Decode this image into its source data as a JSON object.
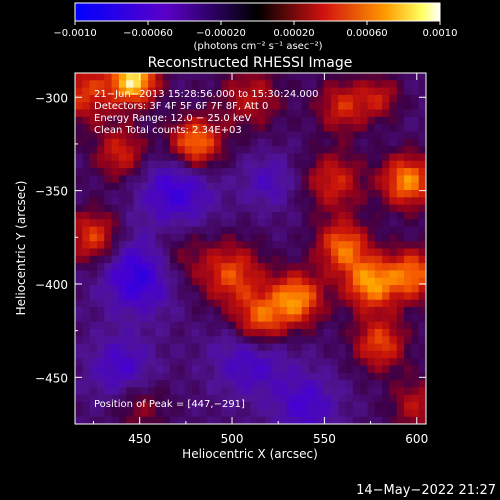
{
  "colorbar": {
    "ticks": [
      "-0.0010",
      "-0.00060",
      "-0.00020",
      "0.00020",
      "0.00060",
      "0.0010"
    ],
    "units": "(photons cm⁻² s⁻¹ asec⁻²)",
    "range": [
      -0.001,
      0.001
    ]
  },
  "footer": {
    "date": "14−May−2022 21:27"
  },
  "chart_data": {
    "type": "heatmap",
    "title": "Reconstructed RHESSI Image",
    "xlabel": "Heliocentric X (arcsec)",
    "ylabel": "Heliocentric Y (arcsec)",
    "xlim": [
      415,
      605
    ],
    "ylim": [
      -475,
      -287
    ],
    "xticks": [
      450,
      500,
      550,
      600
    ],
    "yticks": [
      -300,
      -350,
      -400,
      -450
    ],
    "xtick_labels": [
      "450",
      "500",
      "550",
      "600"
    ],
    "ytick_labels": [
      "−300",
      "−350",
      "−400",
      "−450"
    ],
    "colormap": "blue-purple-red-yellow-white",
    "annotations": [
      "21−Jun−2013 15:28:56.000 to 15:30:24.000",
      "Detectors: 3F 4F 5F 6F 7F 8F, Att 0",
      "Energy Range: 12.0 − 25.0 keV",
      "Clean     Total counts: 2.34E+03"
    ],
    "peak_label": "Position of Peak = [447,−291]",
    "peak": [
      447,
      -291
    ],
    "hotspots": [
      {
        "x": 420,
        "y": -297,
        "s": 12,
        "a": 0.00055
      },
      {
        "x": 447,
        "y": -291,
        "s": 9,
        "a": 0.001
      },
      {
        "x": 480,
        "y": -325,
        "s": 10,
        "a": 0.0008
      },
      {
        "x": 440,
        "y": -330,
        "s": 10,
        "a": 0.0005
      },
      {
        "x": 510,
        "y": -300,
        "s": 12,
        "a": 0.0004
      },
      {
        "x": 560,
        "y": -305,
        "s": 10,
        "a": 0.0005
      },
      {
        "x": 580,
        "y": -300,
        "s": 8,
        "a": 0.0004
      },
      {
        "x": 555,
        "y": -345,
        "s": 11,
        "a": 0.0005
      },
      {
        "x": 595,
        "y": -345,
        "s": 10,
        "a": 0.0008
      },
      {
        "x": 425,
        "y": -375,
        "s": 10,
        "a": 0.0006
      },
      {
        "x": 470,
        "y": -385,
        "s": 12,
        "a": 0.0003
      },
      {
        "x": 500,
        "y": -395,
        "s": 12,
        "a": 0.0006
      },
      {
        "x": 535,
        "y": -408,
        "s": 10,
        "a": 0.0008
      },
      {
        "x": 515,
        "y": -420,
        "s": 10,
        "a": 0.0007
      },
      {
        "x": 560,
        "y": -380,
        "s": 10,
        "a": 0.0007
      },
      {
        "x": 575,
        "y": -400,
        "s": 10,
        "a": 0.0008
      },
      {
        "x": 598,
        "y": -395,
        "s": 10,
        "a": 0.0007
      },
      {
        "x": 580,
        "y": -432,
        "s": 10,
        "a": 0.0006
      },
      {
        "x": 450,
        "y": -465,
        "s": 10,
        "a": 0.0003
      },
      {
        "x": 600,
        "y": -465,
        "s": 10,
        "a": 0.0004
      },
      {
        "x": 470,
        "y": -350,
        "s": 14,
        "a": -0.0005
      },
      {
        "x": 450,
        "y": -395,
        "s": 14,
        "a": -0.0006
      },
      {
        "x": 510,
        "y": -440,
        "s": 14,
        "a": -0.0004
      },
      {
        "x": 540,
        "y": -465,
        "s": 12,
        "a": -0.0004
      },
      {
        "x": 440,
        "y": -445,
        "s": 12,
        "a": -0.0004
      },
      {
        "x": 520,
        "y": -345,
        "s": 10,
        "a": -0.0003
      }
    ]
  }
}
